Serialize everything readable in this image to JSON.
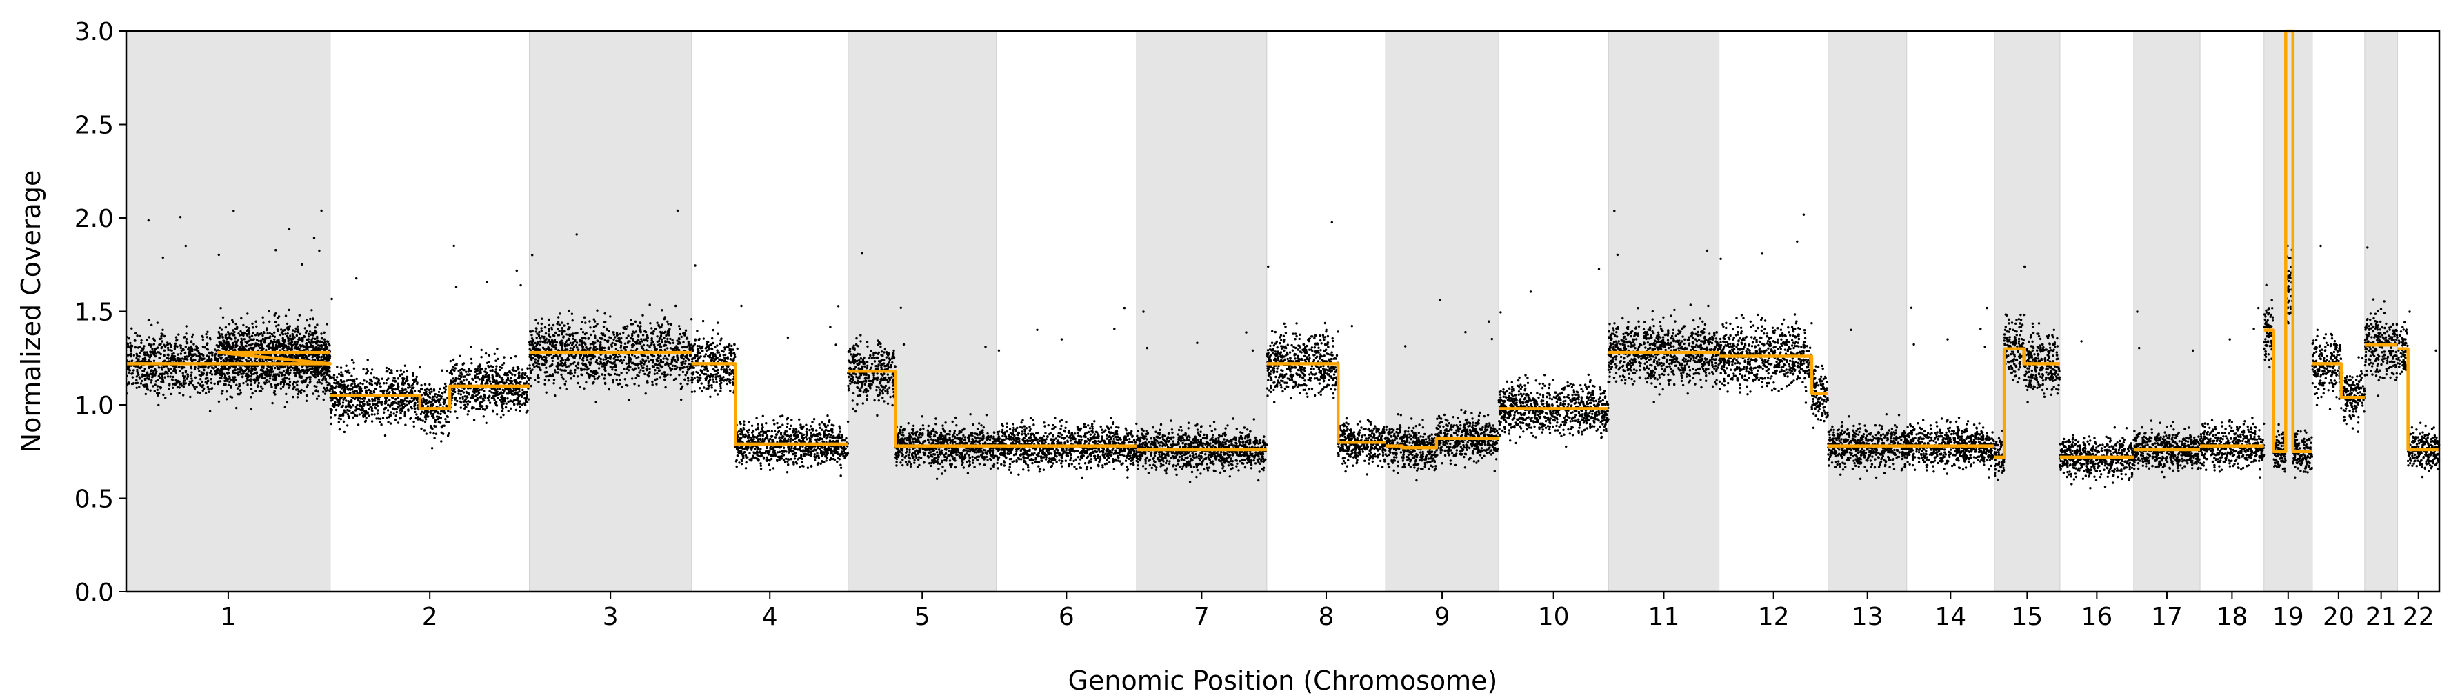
{
  "chart_data": {
    "type": "scatter",
    "title": "",
    "xlabel": "Genomic Position (Chromosome)",
    "ylabel": "Normalized Coverage",
    "ylim": [
      0.0,
      3.0
    ],
    "yticks": [
      "0.0",
      "0.5",
      "1.0",
      "1.5",
      "2.0",
      "2.5",
      "3.0"
    ],
    "grid": false,
    "point_color": "#000000",
    "segment_color": "#FFA500",
    "band_color": "#E5E5E5",
    "chromosomes": [
      {
        "label": "1",
        "length": 249,
        "shaded": true,
        "segments": [
          [
            0,
            1,
            1.22
          ],
          [
            0.45,
            0.5,
            1.28
          ],
          [
            0.5,
            1,
            1.28
          ]
        ]
      },
      {
        "label": "2",
        "length": 243,
        "shaded": false,
        "segments": [
          [
            0,
            0.45,
            1.05
          ],
          [
            0.45,
            0.6,
            0.98
          ],
          [
            0.6,
            1,
            1.1
          ]
        ]
      },
      {
        "label": "3",
        "length": 198,
        "shaded": true,
        "segments": [
          [
            0,
            1,
            1.28
          ]
        ]
      },
      {
        "label": "4",
        "length": 191,
        "shaded": false,
        "segments": [
          [
            0,
            0.28,
            1.22
          ],
          [
            0.28,
            1,
            0.79
          ]
        ]
      },
      {
        "label": "5",
        "length": 181,
        "shaded": true,
        "segments": [
          [
            0,
            0.32,
            1.18
          ],
          [
            0.32,
            1,
            0.78
          ]
        ]
      },
      {
        "label": "6",
        "length": 171,
        "shaded": false,
        "segments": [
          [
            0,
            1,
            0.78
          ]
        ]
      },
      {
        "label": "7",
        "length": 159,
        "shaded": true,
        "segments": [
          [
            0,
            1,
            0.76
          ]
        ]
      },
      {
        "label": "8",
        "length": 145,
        "shaded": false,
        "segments": [
          [
            0,
            0.6,
            1.22
          ],
          [
            0.6,
            1,
            0.8
          ]
        ]
      },
      {
        "label": "9",
        "length": 138,
        "shaded": true,
        "segments": [
          [
            0,
            0.15,
            0.78
          ],
          [
            0.15,
            0.45,
            0.77
          ],
          [
            0.45,
            1,
            0.82
          ]
        ]
      },
      {
        "label": "10",
        "length": 134,
        "shaded": false,
        "segments": [
          [
            0,
            1,
            0.98
          ]
        ]
      },
      {
        "label": "11",
        "length": 135,
        "shaded": true,
        "segments": [
          [
            0,
            1,
            1.28
          ]
        ]
      },
      {
        "label": "12",
        "length": 133,
        "shaded": false,
        "segments": [
          [
            0,
            0.85,
            1.26
          ],
          [
            0.85,
            1,
            1.06
          ]
        ]
      },
      {
        "label": "13",
        "length": 96,
        "shaded": true,
        "segments": [
          [
            0,
            1,
            0.78
          ]
        ]
      },
      {
        "label": "14",
        "length": 107,
        "shaded": false,
        "segments": [
          [
            0,
            1,
            0.78
          ]
        ]
      },
      {
        "label": "15",
        "length": 80,
        "shaded": true,
        "segments": [
          [
            0,
            0.15,
            0.72
          ],
          [
            0.15,
            0.45,
            1.3
          ],
          [
            0.45,
            1,
            1.22
          ]
        ]
      },
      {
        "label": "16",
        "length": 90,
        "shaded": false,
        "segments": [
          [
            0,
            1,
            0.72
          ]
        ]
      },
      {
        "label": "17",
        "length": 81,
        "shaded": true,
        "segments": [
          [
            0,
            1,
            0.76
          ]
        ]
      },
      {
        "label": "18",
        "length": 78,
        "shaded": false,
        "segments": [
          [
            0,
            1,
            0.78
          ]
        ]
      },
      {
        "label": "19",
        "length": 59,
        "shaded": true,
        "segments": [
          [
            0,
            0.2,
            1.4
          ],
          [
            0.2,
            0.45,
            0.75
          ],
          [
            0.45,
            0.6,
            3.0
          ],
          [
            0.6,
            1,
            0.75
          ]
        ]
      },
      {
        "label": "20",
        "length": 64,
        "shaded": false,
        "segments": [
          [
            0,
            0.55,
            1.22
          ],
          [
            0.55,
            1,
            1.04
          ]
        ]
      },
      {
        "label": "21",
        "length": 40,
        "shaded": true,
        "segments": [
          [
            0,
            1,
            1.32
          ]
        ]
      },
      {
        "label": "22",
        "length": 51,
        "shaded": false,
        "segments": [
          [
            0,
            0.25,
            1.3
          ],
          [
            0.25,
            1,
            0.76
          ]
        ]
      }
    ]
  }
}
